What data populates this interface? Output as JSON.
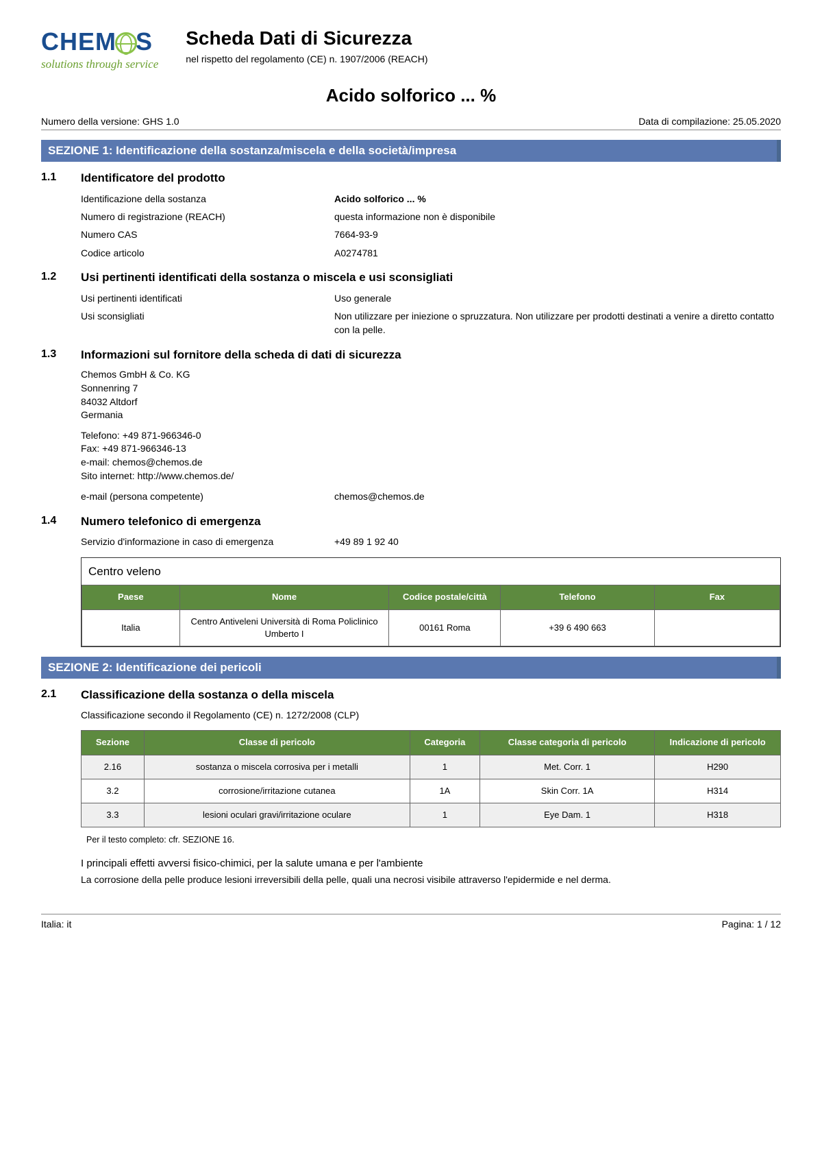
{
  "logo": {
    "brand_prefix": "CHEM",
    "brand_suffix": "S",
    "tagline": "solutions through service"
  },
  "header": {
    "title": "Scheda Dati di Sicurezza",
    "subtitle": "nel rispetto del regolamento (CE) n. 1907/2006 (REACH)"
  },
  "product_title": "Acido solforico ... %",
  "meta": {
    "version_label": "Numero della versione: GHS 1.0",
    "date_label": "Data di compilazione: 25.05.2020"
  },
  "section1": {
    "bar": "SEZIONE 1: Identificazione della sostanza/miscela e della società/impresa",
    "s11": {
      "num": "1.1",
      "title": "Identificatore del prodotto",
      "ident_k": "Identificazione della sostanza",
      "ident_v": "Acido solforico ... %",
      "reach_k": "Numero di registrazione (REACH)",
      "reach_v": "questa informazione non è disponibile",
      "cas_k": "Numero CAS",
      "cas_v": "7664-93-9",
      "art_k": "Codice articolo",
      "art_v": "A0274781"
    },
    "s12": {
      "num": "1.2",
      "title": "Usi pertinenti identificati della sostanza o miscela e usi sconsigliati",
      "use_k": "Usi pertinenti identificati",
      "use_v": "Uso generale",
      "adv_k": "Usi sconsigliati",
      "adv_v": "Non utilizzare per iniezione o spruzzatura.  Non utilizzare per prodotti destinati a venire a diretto contatto con la pelle."
    },
    "s13": {
      "num": "1.3",
      "title": "Informazioni sul fornitore della scheda di dati di sicurezza",
      "company": "Chemos GmbH & Co. KG",
      "street": "Sonnenring 7",
      "city": "84032 Altdorf",
      "country": "Germania",
      "tel": "Telefono: +49 871-966346-0",
      "fax": "Fax: +49 871-966346-13",
      "email": "e-mail: chemos@chemos.de",
      "web": "Sito internet: http://www.chemos.de/",
      "comp_k": "e-mail (persona competente)",
      "comp_v": "chemos@chemos.de"
    },
    "s14": {
      "num": "1.4",
      "title": "Numero telefonico di emergenza",
      "svc_k": "Servizio d'informazione in caso di emergenza",
      "svc_v": "+49 89 1 92 40",
      "poison_title": "Centro veleno",
      "th_country": "Paese",
      "th_name": "Nome",
      "th_postal": "Codice postale/città",
      "th_phone": "Telefono",
      "th_fax": "Fax",
      "row": {
        "country": "Italia",
        "name": "Centro Antiveleni Università di Roma Policlinico Umberto I",
        "postal": "00161 Roma",
        "phone": "+39 6 490 663",
        "fax": ""
      }
    }
  },
  "section2": {
    "bar": "SEZIONE 2: Identificazione dei pericoli",
    "s21": {
      "num": "2.1",
      "title": "Classificazione della sostanza o della miscela",
      "subtitle": "Classificazione secondo il Regolamento (CE) n. 1272/2008 (CLP)",
      "th_sec": "Sezione",
      "th_class": "Classe di pericolo",
      "th_cat": "Categoria",
      "th_catclass": "Classe categoria di pericolo",
      "th_ind": "Indicazione di pericolo",
      "rows": [
        {
          "sec": "2.16",
          "cls": "sostanza o miscela corrosiva per i metalli",
          "cat": "1",
          "cc": "Met. Corr. 1",
          "ind": "H290"
        },
        {
          "sec": "3.2",
          "cls": "corrosione/irritazione cutanea",
          "cat": "1A",
          "cc": "Skin Corr. 1A",
          "ind": "H314"
        },
        {
          "sec": "3.3",
          "cls": "lesioni oculari gravi/irritazione oculare",
          "cat": "1",
          "cc": "Eye Dam. 1",
          "ind": "H318"
        }
      ],
      "footnote": "Per il testo completo: cfr. SEZIONE 16.",
      "para_title": "I principali effetti avversi fisico-chimici, per la salute umana e per l'ambiente",
      "para_body": "La corrosione della pelle produce lesioni irreversibili della pelle, quali una necrosi visibile attraverso l'epidermide e nel derma."
    }
  },
  "footer": {
    "left": "Italia: it",
    "right": "Pagina: 1 / 12"
  }
}
